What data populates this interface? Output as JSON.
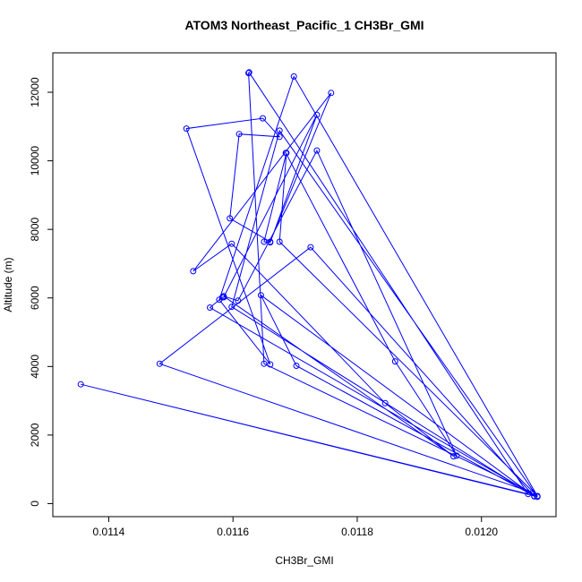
{
  "chart_data": {
    "type": "line",
    "title": "ATOM3 Northeast_Pacific_1 CH3Br_GMI",
    "xlabel": "CH3Br_GMI",
    "ylabel": "Altitude (m)",
    "xlim": [
      0.01131,
      0.01212
    ],
    "ylim": [
      -380,
      13150
    ],
    "xticks": [
      0.0114,
      0.0116,
      0.0118,
      0.012
    ],
    "xtick_labels": [
      "0.0114",
      "0.0116",
      "0.0118",
      "0.0120"
    ],
    "yticks": [
      0,
      2000,
      4000,
      6000,
      8000,
      10000,
      12000
    ],
    "ytick_labels": [
      "0",
      "2000",
      "4000",
      "6000",
      "8000",
      "10000",
      "12000"
    ],
    "grid": false,
    "legend": "none",
    "color": "#0000ff",
    "marker": "open-circle",
    "series": [
      {
        "x": [
          0.01209,
          0.011355,
          0.012075,
          0.011626,
          0.011625,
          0.01165,
          0.012082,
          0.011482,
          0.011725,
          0.012085,
          0.011645,
          0.011702,
          0.012085,
          0.011598,
          0.011675,
          0.01209,
          0.011563,
          0.011583,
          0.011585,
          0.011735,
          0.01166,
          0.01165,
          0.011686,
          0.011675,
          0.01209,
          0.011698,
          0.011578,
          0.01166,
          0.011525,
          0.011648,
          0.011675,
          0.01161,
          0.011595,
          0.01166,
          0.011758,
          0.011536,
          0.011598,
          0.011845,
          0.011955,
          0.011585,
          0.011608,
          0.011735,
          0.01196,
          0.011861,
          0.011685
        ],
        "y": [
          200,
          3480,
          280,
          12580,
          12560,
          4080,
          320,
          4080,
          7480,
          210,
          6080,
          4020,
          220,
          5740,
          10880,
          200,
          5720,
          6020,
          6020,
          11340,
          7620,
          7640,
          10230,
          7640,
          220,
          12460,
          5950,
          4060,
          10940,
          11240,
          10700,
          10780,
          8320,
          7640,
          11980,
          6780,
          7580,
          2930,
          1380,
          6050,
          5920,
          10300,
          1400,
          4150,
          10230
        ]
      }
    ]
  }
}
